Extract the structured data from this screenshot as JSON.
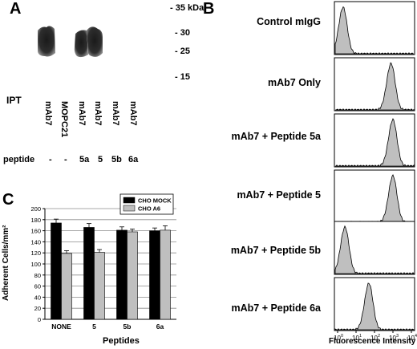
{
  "panelA": {
    "letter": "A",
    "mw_markers": [
      "- 35 kDa",
      "- 30",
      "- 25",
      "- 15"
    ],
    "ipt_label": "IPT",
    "lanes": [
      "mAb7",
      "MOPC21",
      "mAb7",
      "mAb7",
      "mAb7",
      "mAb7"
    ],
    "peptide_label": "peptide",
    "peptides": [
      "-",
      "-",
      "5a",
      "5",
      "5b",
      "6a"
    ]
  },
  "panelB": {
    "letter": "B",
    "histograms": [
      "Control mIgG",
      "mAb7 Only",
      "mAb7 + Peptide 5a",
      "mAb7 + Peptide 5",
      "mAb7 + Peptide 5b",
      "mAb7 + Peptide 6a"
    ],
    "x_ticks": [
      "10",
      "10",
      "10",
      "10",
      "10"
    ],
    "x_tick_exponents": [
      "0",
      "1",
      "2",
      "3",
      "4"
    ],
    "x_axis_label": "Fluorescence Intensity",
    "peak_positions_log10": [
      0.3,
      2.9,
      3.0,
      3.0,
      0.4,
      1.7
    ],
    "fill_color": "#bfbfbf"
  },
  "panelC": {
    "letter": "C",
    "chart_data": {
      "type": "bar",
      "categories": [
        "NONE",
        "5",
        "5b",
        "6a"
      ],
      "series": [
        {
          "name": "CHO MOCK",
          "values": [
            174,
            166,
            161,
            160
          ],
          "errors": [
            7,
            7,
            6,
            5
          ],
          "color": "#000000"
        },
        {
          "name": "CHO A6",
          "values": [
            119,
            121,
            158,
            161
          ],
          "errors": [
            5,
            5,
            5,
            8
          ],
          "color": "#bfbfbf"
        }
      ],
      "ylabel": "Adherent Cells/mm²",
      "xlabel": "Peptides",
      "yticks": [
        "0",
        "20",
        "40",
        "60",
        "80",
        "100",
        "120",
        "140",
        "160",
        "180",
        "200"
      ],
      "ylim": [
        0,
        200
      ],
      "legend_position": "top-right",
      "grid": true
    }
  }
}
